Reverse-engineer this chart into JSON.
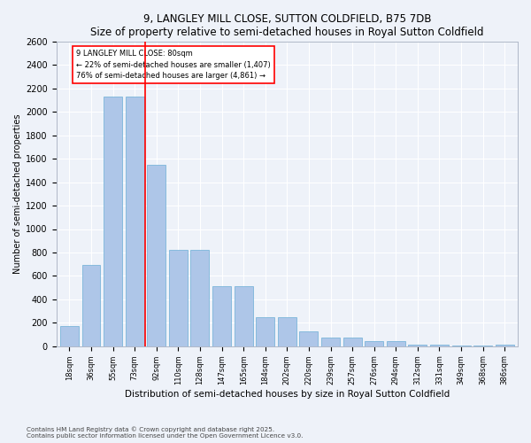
{
  "title": "9, LANGLEY MILL CLOSE, SUTTON COLDFIELD, B75 7DB",
  "subtitle": "Size of property relative to semi-detached houses in Royal Sutton Coldfield",
  "xlabel": "Distribution of semi-detached houses by size in Royal Sutton Coldfield",
  "ylabel": "Number of semi-detached properties",
  "bar_labels": [
    "18sqm",
    "36sqm",
    "55sqm",
    "73sqm",
    "92sqm",
    "110sqm",
    "128sqm",
    "147sqm",
    "165sqm",
    "184sqm",
    "202sqm",
    "220sqm",
    "239sqm",
    "257sqm",
    "276sqm",
    "294sqm",
    "312sqm",
    "331sqm",
    "349sqm",
    "368sqm",
    "386sqm"
  ],
  "bar_values": [
    170,
    690,
    2130,
    2130,
    1550,
    820,
    820,
    510,
    510,
    250,
    250,
    125,
    70,
    70,
    45,
    45,
    10,
    10,
    5,
    5,
    15
  ],
  "bar_color": "#aec6e8",
  "bar_edgecolor": "#6baed6",
  "annotation_text": "9 LANGLEY MILL CLOSE: 80sqm\n← 22% of semi-detached houses are smaller (1,407)\n76% of semi-detached houses are larger (4,861) →",
  "ylim": [
    0,
    2600
  ],
  "yticks": [
    0,
    200,
    400,
    600,
    800,
    1000,
    1200,
    1400,
    1600,
    1800,
    2000,
    2200,
    2400,
    2600
  ],
  "background_color": "#eef2f9",
  "footer_line1": "Contains HM Land Registry data © Crown copyright and database right 2025.",
  "footer_line2": "Contains public sector information licensed under the Open Government Licence v3.0."
}
